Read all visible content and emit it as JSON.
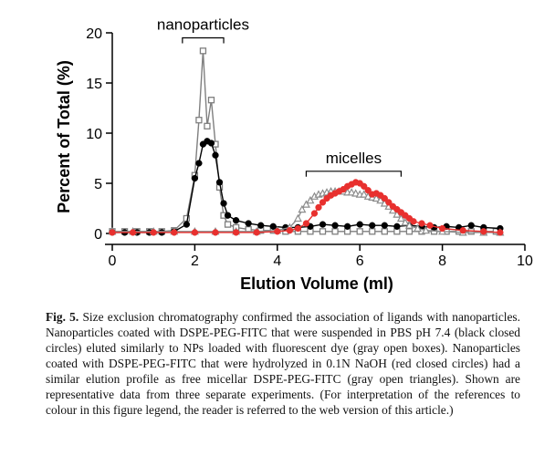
{
  "chart_data": {
    "type": "scatter",
    "xlabel": "Elution Volume (ml)",
    "ylabel": "Percent of Total (%)",
    "xlim": [
      0,
      10
    ],
    "ylim": [
      0,
      20
    ],
    "xticks": [
      "0",
      "2",
      "4",
      "6",
      "8",
      "10"
    ],
    "yticks": [
      "0",
      "5",
      "10",
      "15",
      "20"
    ],
    "grid": false,
    "annotations": [
      {
        "text": "nanoparticles",
        "bracket": [
          1.7,
          2.7
        ],
        "y": 19.5
      },
      {
        "text": "micelles",
        "bracket": [
          4.7,
          7.0
        ],
        "y": 6.2
      }
    ],
    "series": [
      {
        "marker": "open-square",
        "color": "#7f7f7f",
        "x": [
          0.0,
          0.3,
          0.6,
          0.9,
          1.2,
          1.5,
          1.8,
          2.0,
          2.1,
          2.2,
          2.3,
          2.4,
          2.5,
          2.6,
          2.7,
          2.8,
          3.0,
          3.3,
          3.6,
          3.9,
          4.2,
          4.5,
          4.8,
          5.1,
          5.4,
          5.7,
          6.0,
          6.3,
          6.6,
          6.9,
          7.2,
          7.5,
          7.8,
          8.1,
          8.4,
          8.7,
          9.0,
          9.3
        ],
        "values": [
          0.2,
          0.2,
          0.2,
          0.2,
          0.2,
          0.3,
          1.5,
          5.8,
          11.3,
          18.2,
          10.7,
          13.3,
          8.9,
          4.6,
          1.8,
          0.9,
          0.6,
          0.4,
          0.3,
          0.3,
          0.2,
          0.2,
          0.2,
          0.2,
          0.2,
          0.2,
          0.2,
          0.2,
          0.2,
          0.2,
          0.2,
          0.2,
          0.2,
          0.2,
          0.2,
          0.2,
          0.2,
          0.2
        ]
      },
      {
        "marker": "filled-circle",
        "color": "#000000",
        "x": [
          0.0,
          0.3,
          0.6,
          0.9,
          1.2,
          1.5,
          1.8,
          2.0,
          2.1,
          2.2,
          2.3,
          2.4,
          2.5,
          2.6,
          2.7,
          2.8,
          3.0,
          3.3,
          3.6,
          3.9,
          4.2,
          4.5,
          4.8,
          5.1,
          5.4,
          5.7,
          6.0,
          6.3,
          6.6,
          6.9,
          7.2,
          7.5,
          7.8,
          8.1,
          8.4,
          8.7,
          9.0,
          9.4
        ],
        "values": [
          0.1,
          0.1,
          0.1,
          0.1,
          0.1,
          0.2,
          0.9,
          5.5,
          7.0,
          8.9,
          9.2,
          9.0,
          7.8,
          5.1,
          3.0,
          1.8,
          1.3,
          1.0,
          0.8,
          0.7,
          0.6,
          0.6,
          0.7,
          0.9,
          0.8,
          0.7,
          0.9,
          0.8,
          0.8,
          0.7,
          0.8,
          0.7,
          0.6,
          0.7,
          0.6,
          0.8,
          0.6,
          0.5
        ]
      },
      {
        "marker": "open-triangle",
        "color": "#8c8c8c",
        "x": [
          0.0,
          0.5,
          1.0,
          1.5,
          2.0,
          2.5,
          3.0,
          3.5,
          4.0,
          4.3,
          4.5,
          4.6,
          4.7,
          4.8,
          4.9,
          5.0,
          5.1,
          5.2,
          5.3,
          5.4,
          5.5,
          5.6,
          5.7,
          5.8,
          5.9,
          6.0,
          6.1,
          6.2,
          6.3,
          6.4,
          6.5,
          6.6,
          6.7,
          6.8,
          6.9,
          7.0,
          7.1,
          7.2,
          7.4,
          7.6,
          8.0,
          8.5,
          9.0,
          9.4
        ],
        "values": [
          0.2,
          0.2,
          0.2,
          0.2,
          0.2,
          0.2,
          0.2,
          0.2,
          0.3,
          0.6,
          1.5,
          2.4,
          2.9,
          3.3,
          3.7,
          3.9,
          4.0,
          4.1,
          4.2,
          4.2,
          4.2,
          4.2,
          4.1,
          4.1,
          4.0,
          3.9,
          3.9,
          3.7,
          3.6,
          3.5,
          3.3,
          3.0,
          2.7,
          2.3,
          1.9,
          1.5,
          1.1,
          0.8,
          0.5,
          0.3,
          0.2,
          0.1,
          0.1,
          0.1
        ]
      },
      {
        "marker": "filled-circle",
        "color": "#e8302e",
        "x": [
          0.0,
          0.5,
          1.0,
          1.5,
          2.0,
          2.5,
          3.0,
          3.5,
          4.0,
          4.3,
          4.5,
          4.7,
          4.9,
          5.0,
          5.1,
          5.2,
          5.3,
          5.4,
          5.5,
          5.6,
          5.7,
          5.8,
          5.9,
          6.0,
          6.1,
          6.2,
          6.3,
          6.4,
          6.5,
          6.6,
          6.7,
          6.8,
          6.9,
          7.0,
          7.1,
          7.2,
          7.3,
          7.5,
          7.7,
          8.0,
          8.5,
          9.0,
          9.4
        ],
        "values": [
          0.1,
          0.1,
          0.1,
          0.1,
          0.1,
          0.1,
          0.1,
          0.1,
          0.2,
          0.3,
          0.5,
          1.0,
          2.0,
          2.6,
          3.1,
          3.5,
          3.8,
          4.0,
          4.2,
          4.4,
          4.7,
          4.9,
          5.1,
          5.0,
          4.7,
          4.3,
          3.9,
          4.0,
          3.8,
          3.5,
          3.1,
          2.7,
          2.4,
          2.1,
          1.8,
          1.5,
          1.2,
          1.0,
          0.8,
          0.5,
          0.3,
          0.2,
          0.1
        ]
      }
    ]
  },
  "caption": {
    "label": "Fig. 5.",
    "text": "Size exclusion chromatography confirmed the association of ligands with nanoparticles. Nanoparticles coated with DSPE-PEG-FITC that were suspended in PBS pH 7.4 (black closed circles) eluted similarly to NPs loaded with fluorescent dye (gray open boxes). Nanoparticles coated with DSPE-PEG-FITC that were hydrolyzed in 0.1N NaOH (red closed circles) had a similar elution profile as free micellar DSPE-PEG-FITC (gray open triangles). Shown are representative data from three separate experiments. (For interpretation of the references to colour in this figure legend, the reader is referred to the web version of this article.)"
  }
}
